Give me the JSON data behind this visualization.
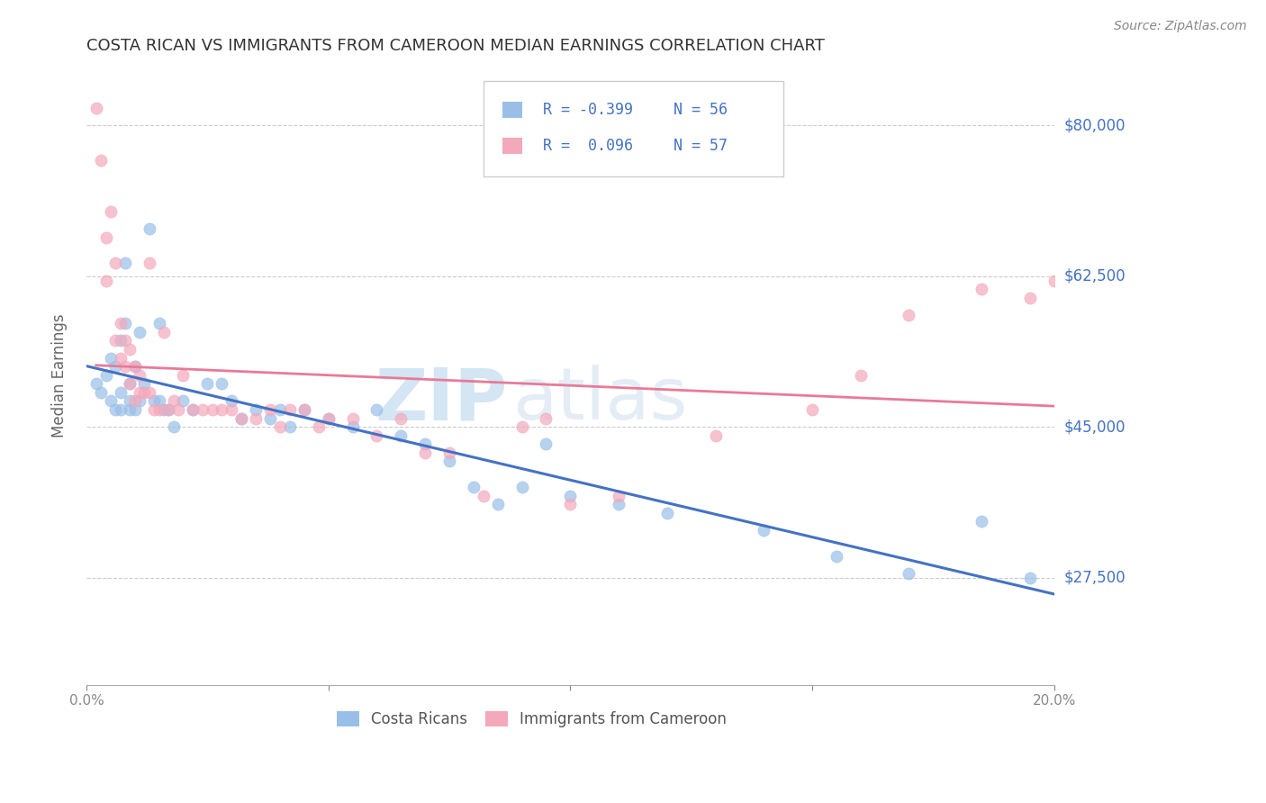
{
  "title": "COSTA RICAN VS IMMIGRANTS FROM CAMEROON MEDIAN EARNINGS CORRELATION CHART",
  "source": "Source: ZipAtlas.com",
  "ylabel": "Median Earnings",
  "xlim": [
    0.0,
    0.2
  ],
  "ylim": [
    15000,
    87000
  ],
  "yticks": [
    27500,
    45000,
    62500,
    80000
  ],
  "ytick_labels": [
    "$27,500",
    "$45,000",
    "$62,500",
    "$80,000"
  ],
  "xticks": [
    0.0,
    0.05,
    0.1,
    0.15,
    0.2
  ],
  "xtick_labels": [
    "0.0%",
    "",
    "",
    "",
    "20.0%"
  ],
  "legend_r_blue": "R = -0.399",
  "legend_n_blue": "N = 56",
  "legend_r_pink": "R =  0.096",
  "legend_n_pink": "N = 57",
  "blue_color": "#99bfe8",
  "pink_color": "#f4a8bb",
  "trend_blue_color": "#4472c4",
  "trend_pink_color": "#e87a98",
  "label_color": "#4472c4",
  "watermark": "ZIPatlas",
  "blue_x": [
    0.002,
    0.003,
    0.004,
    0.005,
    0.005,
    0.006,
    0.006,
    0.007,
    0.007,
    0.007,
    0.008,
    0.008,
    0.009,
    0.009,
    0.009,
    0.01,
    0.01,
    0.011,
    0.011,
    0.012,
    0.013,
    0.014,
    0.015,
    0.015,
    0.016,
    0.017,
    0.018,
    0.02,
    0.022,
    0.025,
    0.028,
    0.03,
    0.032,
    0.035,
    0.038,
    0.04,
    0.042,
    0.045,
    0.05,
    0.055,
    0.06,
    0.065,
    0.07,
    0.075,
    0.08,
    0.085,
    0.09,
    0.095,
    0.1,
    0.11,
    0.12,
    0.14,
    0.155,
    0.17,
    0.185,
    0.195
  ],
  "blue_y": [
    50000,
    49000,
    51000,
    48000,
    53000,
    47000,
    52000,
    55000,
    49000,
    47000,
    64000,
    57000,
    50000,
    48000,
    47000,
    52000,
    47000,
    56000,
    48000,
    50000,
    68000,
    48000,
    48000,
    57000,
    47000,
    47000,
    45000,
    48000,
    47000,
    50000,
    50000,
    48000,
    46000,
    47000,
    46000,
    47000,
    45000,
    47000,
    46000,
    45000,
    47000,
    44000,
    43000,
    41000,
    38000,
    36000,
    38000,
    43000,
    37000,
    36000,
    35000,
    33000,
    30000,
    28000,
    34000,
    27500
  ],
  "pink_x": [
    0.002,
    0.003,
    0.004,
    0.004,
    0.005,
    0.006,
    0.006,
    0.007,
    0.007,
    0.008,
    0.008,
    0.009,
    0.009,
    0.01,
    0.01,
    0.011,
    0.011,
    0.012,
    0.013,
    0.013,
    0.014,
    0.015,
    0.016,
    0.017,
    0.018,
    0.019,
    0.02,
    0.022,
    0.024,
    0.026,
    0.028,
    0.03,
    0.032,
    0.035,
    0.038,
    0.04,
    0.042,
    0.045,
    0.048,
    0.05,
    0.055,
    0.06,
    0.065,
    0.07,
    0.075,
    0.082,
    0.09,
    0.095,
    0.1,
    0.11,
    0.13,
    0.15,
    0.16,
    0.17,
    0.185,
    0.195,
    0.2
  ],
  "pink_y": [
    82000,
    76000,
    67000,
    62000,
    70000,
    55000,
    64000,
    57000,
    53000,
    55000,
    52000,
    54000,
    50000,
    52000,
    48000,
    51000,
    49000,
    49000,
    64000,
    49000,
    47000,
    47000,
    56000,
    47000,
    48000,
    47000,
    51000,
    47000,
    47000,
    47000,
    47000,
    47000,
    46000,
    46000,
    47000,
    45000,
    47000,
    47000,
    45000,
    46000,
    46000,
    44000,
    46000,
    42000,
    42000,
    37000,
    45000,
    46000,
    36000,
    37000,
    44000,
    47000,
    51000,
    58000,
    61000,
    60000,
    62000
  ]
}
